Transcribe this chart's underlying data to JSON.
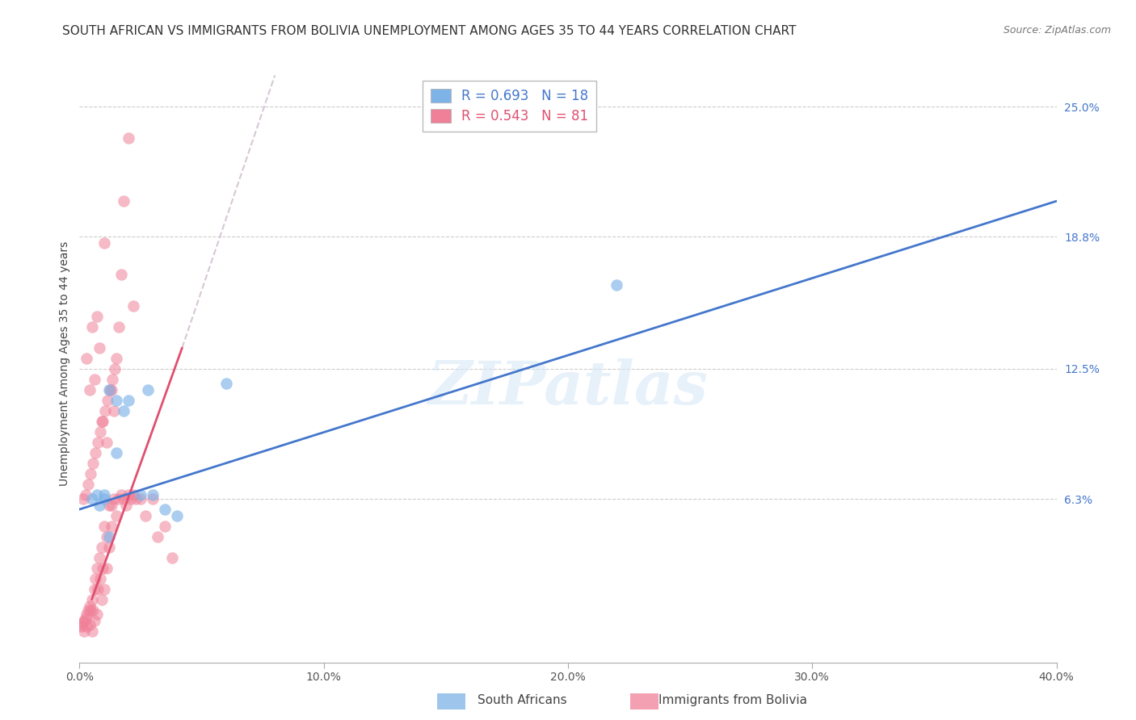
{
  "title": "SOUTH AFRICAN VS IMMIGRANTS FROM BOLIVIA UNEMPLOYMENT AMONG AGES 35 TO 44 YEARS CORRELATION CHART",
  "source": "Source: ZipAtlas.com",
  "xlabel_ticks": [
    "0.0%",
    "10.0%",
    "20.0%",
    "30.0%",
    "40.0%"
  ],
  "xlabel_tick_vals": [
    0.0,
    10.0,
    20.0,
    30.0,
    40.0
  ],
  "ylabel_ticks": [
    "6.3%",
    "12.5%",
    "18.8%",
    "25.0%"
  ],
  "ylabel_tick_vals": [
    6.3,
    12.5,
    18.8,
    25.0
  ],
  "xlim": [
    0.0,
    40.0
  ],
  "ylim": [
    -1.5,
    27.0
  ],
  "ylabel": "Unemployment Among Ages 35 to 44 years",
  "legend_blue_r": "R = 0.693",
  "legend_blue_n": "N = 18",
  "legend_pink_r": "R = 0.543",
  "legend_pink_n": "N = 81",
  "blue_color": "#7EB3E8",
  "pink_color": "#F08098",
  "blue_line_color": "#4477CC",
  "pink_line_color": "#E05070",
  "watermark": "ZIPatlas",
  "blue_scatter_x": [
    0.5,
    0.8,
    1.0,
    1.0,
    1.2,
    1.5,
    1.5,
    1.8,
    2.0,
    2.5,
    2.8,
    3.0,
    3.5,
    4.0,
    1.2,
    0.7,
    22.0,
    6.0
  ],
  "blue_scatter_y": [
    6.3,
    6.0,
    6.3,
    6.5,
    4.5,
    8.5,
    11.0,
    10.5,
    11.0,
    6.5,
    11.5,
    6.5,
    5.8,
    5.5,
    11.5,
    6.5,
    16.5,
    11.8
  ],
  "pink_scatter_x": [
    0.05,
    0.1,
    0.15,
    0.2,
    0.2,
    0.25,
    0.3,
    0.3,
    0.35,
    0.4,
    0.4,
    0.45,
    0.5,
    0.5,
    0.55,
    0.6,
    0.6,
    0.65,
    0.7,
    0.7,
    0.75,
    0.8,
    0.85,
    0.9,
    0.9,
    0.95,
    1.0,
    1.0,
    1.1,
    1.1,
    1.2,
    1.2,
    1.3,
    1.3,
    1.4,
    1.5,
    1.6,
    1.7,
    1.8,
    1.9,
    2.0,
    2.1,
    2.2,
    2.3,
    2.5,
    2.7,
    3.0,
    3.2,
    3.5,
    3.8,
    0.3,
    0.4,
    0.5,
    0.6,
    0.7,
    0.8,
    0.9,
    1.0,
    1.1,
    1.3,
    1.4,
    1.5,
    1.6,
    1.7,
    1.8,
    2.0,
    2.2,
    0.15,
    0.25,
    0.35,
    0.45,
    0.55,
    0.65,
    0.75,
    0.85,
    0.95,
    1.05,
    1.15,
    1.25,
    1.35,
    1.45
  ],
  "pink_scatter_y": [
    0.3,
    0.2,
    0.4,
    0.5,
    0.0,
    0.6,
    0.8,
    0.2,
    1.0,
    1.2,
    0.3,
    1.0,
    1.5,
    0.0,
    1.0,
    2.0,
    0.5,
    2.5,
    3.0,
    0.8,
    2.0,
    3.5,
    2.5,
    4.0,
    1.5,
    3.0,
    5.0,
    2.0,
    4.5,
    3.0,
    6.0,
    4.0,
    6.0,
    5.0,
    6.3,
    5.5,
    6.3,
    6.5,
    6.3,
    6.0,
    6.5,
    6.3,
    6.5,
    6.3,
    6.3,
    5.5,
    6.3,
    4.5,
    5.0,
    3.5,
    13.0,
    11.5,
    14.5,
    12.0,
    15.0,
    13.5,
    10.0,
    18.5,
    9.0,
    11.5,
    10.5,
    13.0,
    14.5,
    17.0,
    20.5,
    23.5,
    15.5,
    6.3,
    6.5,
    7.0,
    7.5,
    8.0,
    8.5,
    9.0,
    9.5,
    10.0,
    10.5,
    11.0,
    11.5,
    12.0,
    12.5
  ],
  "blue_line_x0": 0.0,
  "blue_line_y0": 5.8,
  "blue_line_x1": 40.0,
  "blue_line_y1": 20.5,
  "pink_solid_x0": 0.5,
  "pink_solid_y0": 1.5,
  "pink_solid_x1": 4.2,
  "pink_solid_y1": 13.5,
  "pink_dash_x0": 4.2,
  "pink_dash_y0": 13.5,
  "pink_dash_x1": 8.0,
  "pink_dash_y1": 26.5,
  "background_color": "#FFFFFF",
  "grid_color": "#CCCCCC",
  "title_fontsize": 11,
  "axis_label_fontsize": 10,
  "tick_fontsize": 10,
  "source_fontsize": 9
}
